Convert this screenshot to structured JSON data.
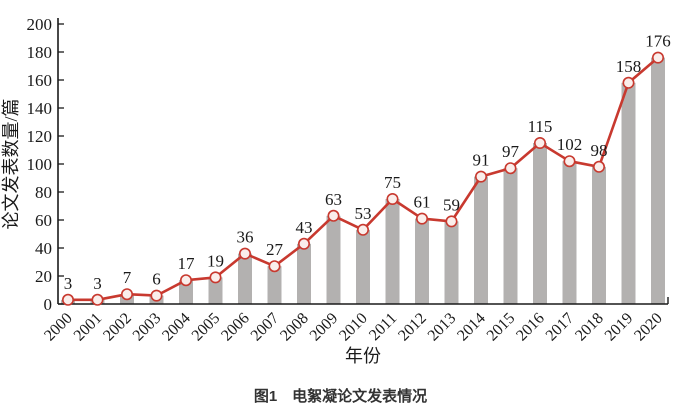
{
  "figure": {
    "caption": "图1　电絮凝论文发表情况"
  },
  "chart_data": {
    "type": "bar+line",
    "categories": [
      "2000",
      "2001",
      "2002",
      "2003",
      "2004",
      "2005",
      "2006",
      "2007",
      "2008",
      "2009",
      "2010",
      "2011",
      "2012",
      "2013",
      "2014",
      "2015",
      "2016",
      "2017",
      "2018",
      "2019",
      "2020"
    ],
    "values": [
      3,
      3,
      7,
      6,
      17,
      19,
      36,
      27,
      43,
      63,
      53,
      75,
      61,
      59,
      91,
      97,
      115,
      102,
      98,
      158,
      176
    ],
    "title": "",
    "xlabel": "年份",
    "ylabel": "论文发表数量/篇",
    "ylim": [
      0,
      200
    ],
    "ytick_step": 20,
    "grid": false,
    "legend": "none",
    "value_labels_shown": true,
    "x_tick_rotation_deg": 45,
    "colors": {
      "bar": "#b3b1b0",
      "line": "#c8392f",
      "marker_fill": "#faeeeb",
      "axis": "#1a1a1a",
      "text": "#1a1a1a",
      "caption_text": "#333333",
      "background": "#ffffff"
    }
  }
}
